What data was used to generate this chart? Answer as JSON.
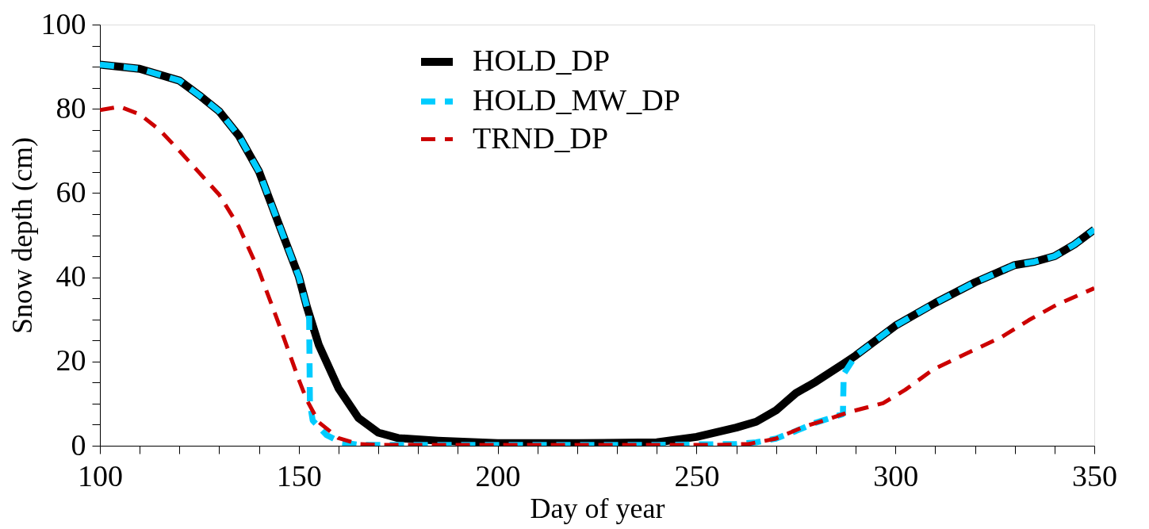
{
  "chart_data": {
    "type": "line",
    "xlabel": "Day of year",
    "ylabel": "Snow depth (cm)",
    "xlim": [
      100,
      350
    ],
    "ylim": [
      0,
      100
    ],
    "xticks": [
      100,
      {
        "value": 110,
        "label": null
      },
      {
        "value": 120,
        "label": null
      },
      {
        "value": 130,
        "label": null
      },
      {
        "value": 140,
        "label": null
      },
      150,
      {
        "value": 160,
        "label": null
      },
      {
        "value": 170,
        "label": null
      },
      {
        "value": 180,
        "label": null
      },
      {
        "value": 190,
        "label": null
      },
      200,
      {
        "value": 210,
        "label": null
      },
      {
        "value": 220,
        "label": null
      },
      {
        "value": 230,
        "label": null
      },
      {
        "value": 240,
        "label": null
      },
      250,
      {
        "value": 260,
        "label": null
      },
      {
        "value": 270,
        "label": null
      },
      {
        "value": 280,
        "label": null
      },
      {
        "value": 290,
        "label": null
      },
      300,
      {
        "value": 310,
        "label": null
      },
      {
        "value": 320,
        "label": null
      },
      {
        "value": 330,
        "label": null
      },
      {
        "value": 340,
        "label": null
      },
      350
    ],
    "yticks": [
      0,
      {
        "value": 5,
        "label": null
      },
      {
        "value": 10,
        "label": null
      },
      {
        "value": 15,
        "label": null
      },
      20,
      {
        "value": 25,
        "label": null
      },
      {
        "value": 30,
        "label": null
      },
      {
        "value": 35,
        "label": null
      },
      40,
      {
        "value": 45,
        "label": null
      },
      {
        "value": 50,
        "label": null
      },
      {
        "value": 55,
        "label": null
      },
      60,
      {
        "value": 65,
        "label": null
      },
      {
        "value": 70,
        "label": null
      },
      {
        "value": 75,
        "label": null
      },
      80,
      {
        "value": 85,
        "label": null
      },
      {
        "value": 90,
        "label": null
      },
      {
        "value": 95,
        "label": null
      },
      100
    ],
    "grid": false,
    "legend": "top",
    "marker": "none",
    "series": [
      {
        "name": "HOLD_DP",
        "color": "#000000",
        "line_style": "solid",
        "x": [
          100,
          110,
          120,
          125,
          130,
          135,
          140,
          145,
          150,
          152,
          155,
          160,
          165,
          170,
          175,
          185,
          200,
          220,
          240,
          250,
          260,
          265,
          270,
          275,
          280,
          287,
          290,
          300,
          310,
          320,
          330,
          335,
          340,
          345,
          350
        ],
        "values": [
          90.5,
          89.5,
          86.7,
          83.2,
          79.4,
          73.5,
          65.1,
          52.6,
          40.2,
          33.1,
          24,
          13.6,
          6.6,
          3.1,
          1.8,
          1.2,
          0.6,
          0.6,
          0.8,
          2.1,
          4.3,
          5.7,
          8.4,
          12.5,
          15.2,
          19.5,
          21.4,
          28.5,
          33.9,
          38.8,
          42.9,
          43.7,
          45,
          47.8,
          51.3
        ]
      },
      {
        "name": "HOLD_MW_DP",
        "color": "#00ccff",
        "line_style": "dashed",
        "x": [
          100,
          110,
          120,
          125,
          130,
          135,
          140,
          145,
          150,
          152.6,
          152.8,
          153.5,
          157,
          160.6,
          165,
          200,
          240,
          260,
          265,
          270,
          275,
          280,
          286.8,
          287,
          290,
          300,
          310,
          320,
          330,
          335,
          340,
          345,
          350
        ],
        "values": [
          90.5,
          89.5,
          86.7,
          83.2,
          79.4,
          73.5,
          65.1,
          52.6,
          40.2,
          31,
          10.1,
          6,
          2.5,
          0.8,
          0.2,
          0.2,
          0.2,
          0.4,
          0.8,
          1.7,
          3.5,
          5.5,
          7.5,
          17,
          21.4,
          28.5,
          33.9,
          38.8,
          42.9,
          43.7,
          45,
          47.8,
          51.3
        ]
      },
      {
        "name": "TRND_DP",
        "color": "#cc0000",
        "line_style": "dashed",
        "x": [
          100,
          105,
          110,
          115,
          120,
          125,
          130,
          135,
          140,
          145,
          150,
          152,
          155,
          160,
          165,
          170,
          200,
          240,
          255,
          263,
          270,
          277,
          284,
          288.4,
          296.9,
          302.5,
          309.5,
          319.4,
          326.5,
          333.5,
          340.6,
          350
        ],
        "values": [
          79.7,
          80.5,
          78.7,
          75,
          70,
          64.8,
          59.6,
          51.9,
          41.5,
          28.9,
          15.7,
          10.9,
          5.6,
          1.8,
          0.4,
          0.2,
          0.2,
          0.2,
          0.2,
          0.4,
          1.7,
          4.5,
          6.6,
          8,
          10.1,
          13.3,
          18.1,
          22.6,
          25.7,
          29.8,
          33.5,
          37.4
        ]
      }
    ]
  }
}
